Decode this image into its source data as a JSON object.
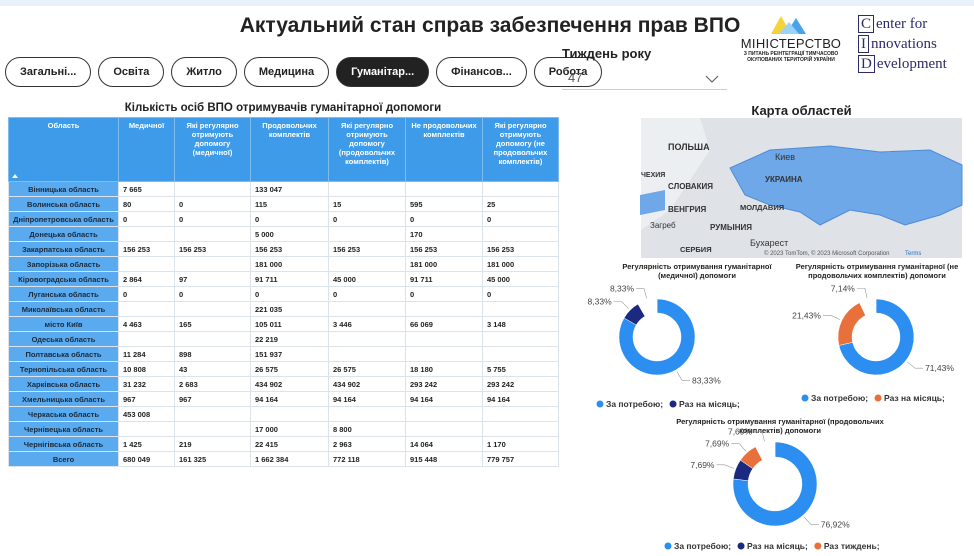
{
  "header": {
    "title": "Актуальний стан справ забезпечення прав ВПО",
    "tabs": [
      "Загальні...",
      "Освіта",
      "Житло",
      "Медицина",
      "Гуманітар...",
      "Фінансов...",
      "Робота"
    ],
    "active_tab": 4
  },
  "week": {
    "label": "Тиждень року",
    "value": "47"
  },
  "logos": {
    "ministry": [
      "МІНІСТЕРСТВО",
      "З ПИТАНЬ РЕІНТЕГРАЦІЇ ТИМЧАСОВО",
      "ОКУПОВАНИХ ТЕРИТОРІЙ УКРАЇНИ"
    ],
    "cid": [
      "Center for",
      "Innovations",
      "Development"
    ]
  },
  "table": {
    "title": "Кількість осіб ВПО отримувачів гуманітарної допомоги",
    "columns": [
      "Область",
      "Медичної",
      "Які регулярно отримують допомогу (медичної)",
      "Продовольчих комплектів",
      "Які регулярно отримують допомогу (продовольчих комплектів)",
      "Не продовольчих комплектів",
      "Які регулярно отримують допомогу (не продовольчих комплектів)"
    ],
    "rows": [
      [
        "Вінницька область",
        "7 665",
        null,
        "133 047",
        null,
        null,
        null
      ],
      [
        "Волинська область",
        "80",
        "0",
        "115",
        "15",
        "595",
        "25"
      ],
      [
        "Дніпропетровська область",
        "0",
        "0",
        "0",
        "0",
        "0",
        "0"
      ],
      [
        "Донецька область",
        null,
        null,
        "5 000",
        null,
        "170",
        null
      ],
      [
        "Закарпатська область",
        "156 253",
        "156 253",
        "156 253",
        "156 253",
        "156 253",
        "156 253"
      ],
      [
        "Запорізька область",
        null,
        null,
        "181 000",
        null,
        "181 000",
        "181 000"
      ],
      [
        "Кіровоградська область",
        "2 864",
        "97",
        "91 711",
        "45 000",
        "91 711",
        "45 000"
      ],
      [
        "Луганська область",
        "0",
        "0",
        "0",
        "0",
        "0",
        "0"
      ],
      [
        "Миколаївська область",
        null,
        null,
        "221 035",
        null,
        null,
        null
      ],
      [
        "місто Київ",
        "4 463",
        "165",
        "105 011",
        "3 446",
        "66 069",
        "3 148"
      ],
      [
        "Одеська область",
        null,
        null,
        "22 219",
        null,
        null,
        null
      ],
      [
        "Полтавська область",
        "11 284",
        "898",
        "151 937",
        null,
        null,
        null
      ],
      [
        "Тернопільська область",
        "10 808",
        "43",
        "26 575",
        "26 575",
        "18 180",
        "5 755"
      ],
      [
        "Харківська область",
        "31 232",
        "2 683",
        "434 902",
        "434 902",
        "293 242",
        "293 242"
      ],
      [
        "Хмельницька область",
        "967",
        "967",
        "94 164",
        "94 164",
        "94 164",
        "94 164"
      ],
      [
        "Черкаська область",
        "453 008",
        null,
        null,
        null,
        null,
        null
      ],
      [
        "Чернівецька область",
        null,
        null,
        "17 000",
        "8 800",
        null,
        null
      ],
      [
        "Чернігівська область",
        "1 425",
        "219",
        "22 415",
        "2 963",
        "14 064",
        "1 170"
      ],
      [
        "Всего",
        "680 049",
        "161 325",
        "1 662 384",
        "772 118",
        "915 448",
        "779 757"
      ]
    ]
  },
  "map": {
    "title": "Карта областей",
    "labels": [
      "ПОЛЬША",
      "Киев",
      "УКРАИНА",
      "ЧЕХИЯ",
      "СЛОВАКИЯ",
      "ВЕНГРИЯ",
      "МОЛДАВИЯ",
      "РУМЫНИЯ",
      "Загреб",
      "СЕРБИЯ",
      "Бухарест"
    ],
    "attribution": "© 2023 TomTom, © 2023 Microsoft Corporation",
    "terms": "Terms"
  },
  "chart_data": [
    {
      "type": "donut",
      "title": "Регулярність отримування гуманітарної (медичної) допомоги",
      "categories": [
        "За потребою;",
        "Раз на місяць;",
        null
      ],
      "colors": [
        "#2b8ef0",
        "#1b2a80",
        "#ffffff"
      ],
      "values": [
        83.33,
        8.33,
        8.33
      ],
      "value_labels": [
        "83,33%",
        "8,33%",
        "8,33%"
      ]
    },
    {
      "type": "donut",
      "title": "Регулярність отримування гуманітарної (не продовольчих комплектів) допомоги",
      "categories": [
        "За потребою;",
        "Раз на місяць;",
        null
      ],
      "colors": [
        "#2b8ef0",
        "#e8703a",
        "#ffffff"
      ],
      "values": [
        71.43,
        21.43,
        7.14
      ],
      "value_labels": [
        "71,43%",
        "21,43%",
        "7,14%"
      ]
    },
    {
      "type": "donut",
      "title": "Регулярність отримування гуманітарної (продовольчих комплектів) допомоги",
      "categories": [
        "За потребою;",
        "Раз на місяць;",
        "Раз тиждень;",
        null
      ],
      "colors": [
        "#2b8ef0",
        "#1b2a80",
        "#e8703a",
        "#ffffff"
      ],
      "values": [
        76.92,
        7.69,
        7.69,
        7.69
      ],
      "value_labels": [
        "76,92%",
        "7,69%",
        "7,69%",
        "7,69%"
      ]
    }
  ]
}
